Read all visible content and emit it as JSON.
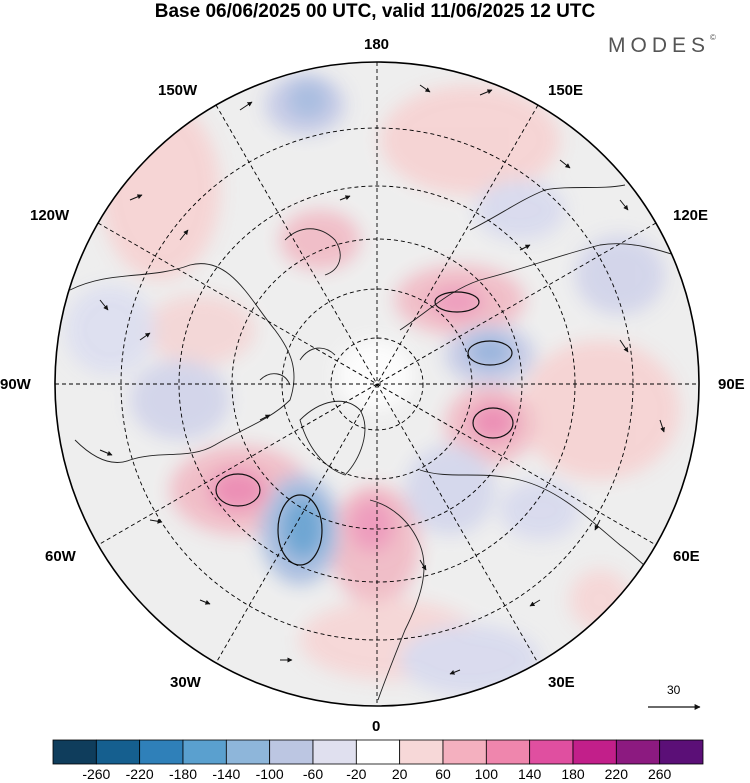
{
  "title": "Base 06/06/2025 00 UTC, valid 11/06/2025 12 UTC",
  "brand": "MODES",
  "brand_mark": "©",
  "longitude_labels": {
    "l180": "180",
    "l150e": "150E",
    "l120e": "120E",
    "l90e": "90E",
    "l60e": "60E",
    "l30e": "30E",
    "l0": "0",
    "l30w": "30W",
    "l60w": "60W",
    "l90w": "90W",
    "l120w": "120W",
    "l150w": "150W"
  },
  "reference_vector": "30",
  "colorbar": {
    "labels": [
      "-260",
      "-220",
      "-180",
      "-140",
      "-100",
      "-60",
      "-20",
      "20",
      "60",
      "100",
      "140",
      "180",
      "220",
      "260"
    ],
    "colors": [
      "#0f3d5c",
      "#155f8f",
      "#2f80b9",
      "#5aa0cf",
      "#8eb6da",
      "#bcc6e2",
      "#e0e0ef",
      "#ffffff",
      "#f7d8d8",
      "#f4b0bf",
      "#ef86ad",
      "#e04fa0",
      "#c21f8a",
      "#8c1a80",
      "#5b0f77"
    ]
  },
  "map": {
    "projection": "north-polar-stereographic",
    "field": "anomaly with wind vectors",
    "palette": {
      "land_outline": "#222222",
      "grid": "#000000",
      "neutral": "#eeeeee",
      "arrow": "#111111"
    }
  }
}
